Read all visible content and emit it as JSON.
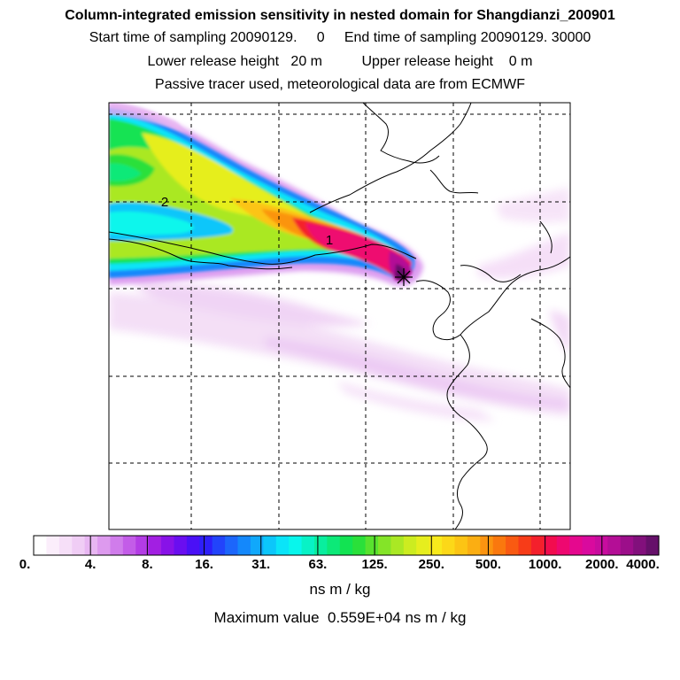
{
  "header": {
    "title": "Column-integrated emission sensitivity in nested domain for Shangdianzi_200901",
    "sampling_line": "Start time of sampling 20090129.     0     End time of sampling 20090129. 30000",
    "release_line": "Lower release height   20 m          Upper release height    0 m",
    "tracer_line": "Passive tracer used, meteorological data are from ECMWF"
  },
  "map": {
    "contour_labels": [
      "2",
      "1"
    ],
    "release_marker": "release-site-star"
  },
  "colorbar": {
    "tick_labels": [
      "0.",
      "4.",
      "8.",
      "16.",
      "31.",
      "63.",
      "125.",
      "250.",
      "500.",
      "1000.",
      "2000.",
      "4000."
    ],
    "colors": [
      "#ffffff",
      "#fbeefb",
      "#f6dff8",
      "#f0cdf5",
      "#e8b6f2",
      "#dd9aee",
      "#d07ceb",
      "#c35ce8",
      "#b33ce5",
      "#a21fe2",
      "#8812e8",
      "#6a0ef0",
      "#4a10f6",
      "#2e1ffa",
      "#2244fb",
      "#1c66fb",
      "#1488fb",
      "#10a8fb",
      "#0cc6fa",
      "#0ae4f8",
      "#08f6ec",
      "#08f2c6",
      "#09ee9e",
      "#0ce978",
      "#12e352",
      "#2ae03a",
      "#58e22e",
      "#84e428",
      "#aae824",
      "#ccec20",
      "#e6ee1e",
      "#f8ea1c",
      "#fcd818",
      "#fcc414",
      "#fbae12",
      "#fb9410",
      "#fa780e",
      "#f95a12",
      "#f73c18",
      "#f4202c",
      "#f20c4e",
      "#ee0870",
      "#e5088e",
      "#d90a9e",
      "#c80c9e",
      "#b40e96",
      "#9c0e8a",
      "#82107c",
      "#66106a"
    ],
    "unit": "ns m / kg"
  },
  "footer": {
    "max_value": "Maximum value  0.559E+04 ns m / kg"
  }
}
